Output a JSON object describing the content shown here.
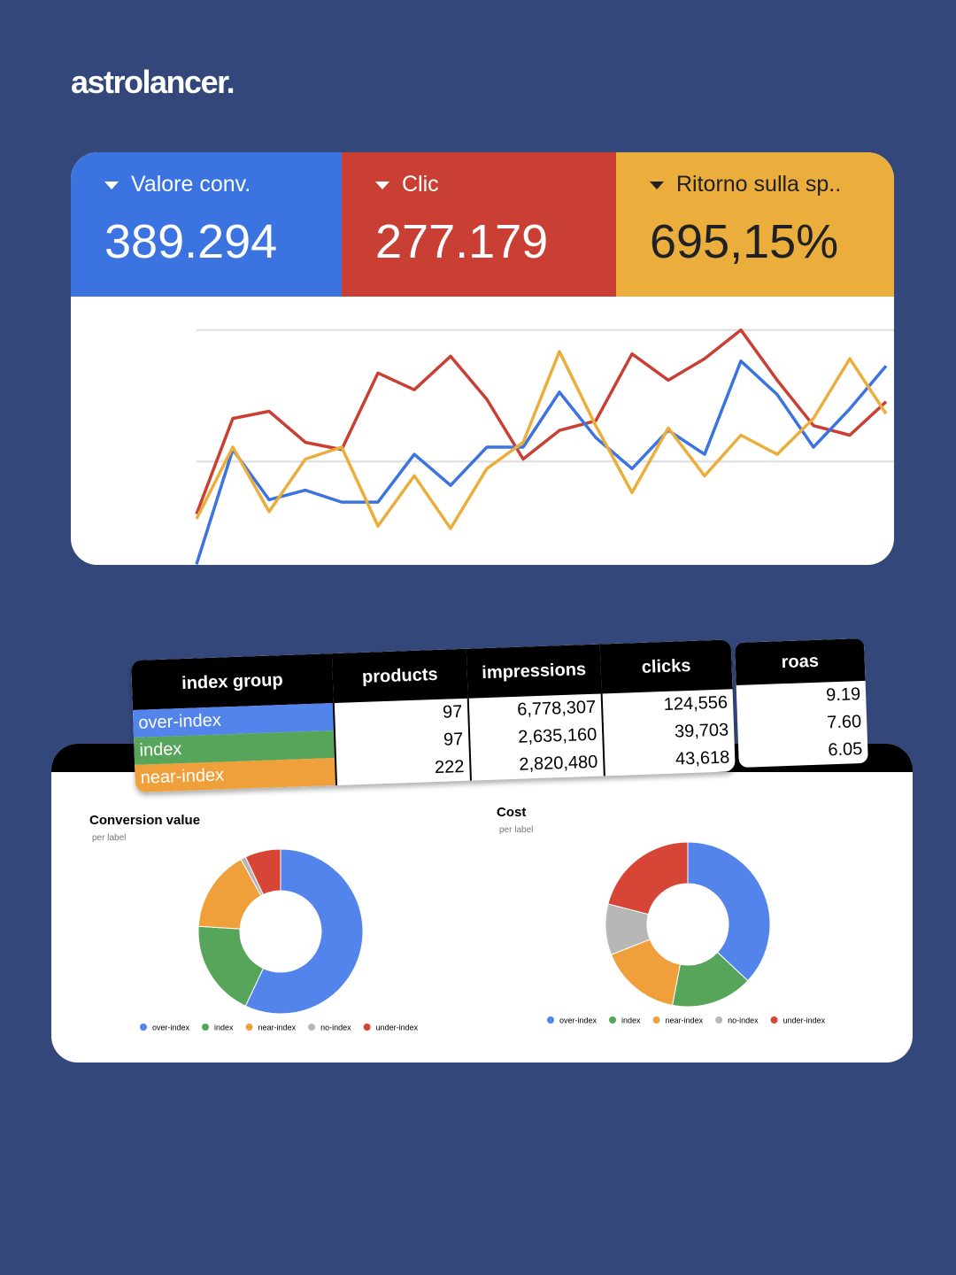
{
  "brand": "astrolancer.",
  "kpis": [
    {
      "label": "Valore conv.",
      "value": "389.294",
      "color": "#3b74e0"
    },
    {
      "label": "Clic",
      "value": "277.179",
      "color": "#c93f33"
    },
    {
      "label": "Ritorno sulla sp..",
      "value": "695,15%",
      "color": "#ebae3c"
    }
  ],
  "chart_data": [
    {
      "type": "line",
      "ylim": [
        0,
        100
      ],
      "yticks": [
        44,
        99
      ],
      "grid": true,
      "series": [
        {
          "name": "Clic",
          "color": "#c93f33",
          "values": [
            22,
            62,
            65,
            52,
            49,
            81,
            74,
            88,
            70,
            45,
            57,
            61,
            89,
            78,
            87,
            99,
            78,
            59,
            55,
            69
          ]
        },
        {
          "name": "Valore conv.",
          "color": "#3b74e0",
          "values": [
            1,
            49,
            28,
            32,
            27,
            27,
            47,
            34,
            50,
            50,
            73,
            54,
            41,
            57,
            47,
            86,
            72,
            50,
            66,
            84
          ]
        },
        {
          "name": "Ritorno sulla sp..",
          "color": "#ebae3c",
          "values": [
            20,
            50,
            23,
            45,
            50,
            17,
            38,
            16,
            41,
            52,
            90,
            59,
            31,
            58,
            38,
            55,
            47,
            62,
            87,
            64
          ]
        }
      ]
    },
    {
      "type": "donut",
      "title": "Conversion value",
      "subtitle": "per label",
      "categories": [
        "over-index",
        "index",
        "near-index",
        "no-index",
        "under-index"
      ],
      "colors": [
        "#5384ec",
        "#57a55a",
        "#f0a03a",
        "#b7b7b7",
        "#d64535"
      ],
      "values": [
        57,
        19,
        16,
        1,
        7
      ]
    },
    {
      "type": "donut",
      "title": "Cost",
      "subtitle": "per label",
      "categories": [
        "over-index",
        "index",
        "near-index",
        "no-index",
        "under-index"
      ],
      "colors": [
        "#5384ec",
        "#57a55a",
        "#f0a03a",
        "#b7b7b7",
        "#d64535"
      ],
      "values": [
        37,
        16,
        16,
        10,
        21
      ]
    }
  ],
  "table": {
    "headers": [
      "index group",
      "products",
      "impressions",
      "clicks"
    ],
    "rows": [
      [
        "over-index",
        "97",
        "6,778,307",
        "124,556"
      ],
      [
        "index",
        "97",
        "2,635,160",
        "39,703"
      ],
      [
        "near-index",
        "222",
        "2,820,480",
        "43,618"
      ]
    ],
    "row_colors": [
      "#5384ec",
      "#57a55a",
      "#f0a03a"
    ]
  },
  "roas": {
    "header": "roas",
    "rows": [
      "9.19",
      "7.60",
      "6.05"
    ]
  }
}
